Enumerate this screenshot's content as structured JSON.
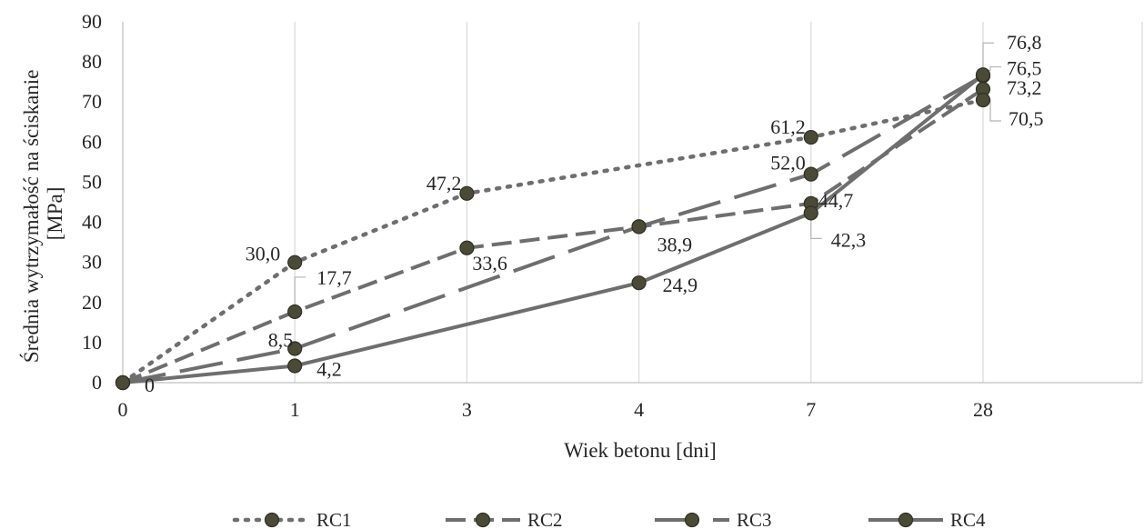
{
  "chart_data": {
    "type": "line",
    "title": "",
    "xlabel": "Wiek betonu [dni]",
    "ylabel_lines": [
      "Średnia wytrzymałość na ściskanie",
      "[MPa]"
    ],
    "categories": [
      "0",
      "1",
      "3",
      "4",
      "7",
      "28"
    ],
    "ylim": [
      0,
      90
    ],
    "yticks": [
      "0",
      "10",
      "20",
      "30",
      "40",
      "50",
      "60",
      "70",
      "80",
      "90"
    ],
    "grid": "vertical",
    "legend_position": "bottom",
    "series": [
      {
        "name": "RC1",
        "style": "dotted",
        "values": [
          0,
          30.0,
          47.2,
          null,
          61.2,
          70.5
        ],
        "labels": [
          "",
          "30,0",
          "47,2",
          "",
          "61,2",
          "70,5"
        ]
      },
      {
        "name": "RC2",
        "style": "dashed",
        "values": [
          0,
          17.7,
          33.6,
          38.9,
          44.7,
          73.2
        ],
        "labels": [
          "",
          "17,7",
          "33,6",
          "38,9",
          "44,7",
          "73,2"
        ]
      },
      {
        "name": "RC3",
        "style": "longdash",
        "values": [
          0,
          8.5,
          null,
          38.9,
          52.0,
          76.5
        ],
        "labels": [
          "",
          "8,5",
          "",
          "",
          "52,0",
          "76,5"
        ]
      },
      {
        "name": "RC4",
        "style": "solid",
        "values": [
          0,
          4.2,
          null,
          24.9,
          42.3,
          76.8
        ],
        "labels": [
          "0",
          "4,2",
          "",
          "24,9",
          "42,3",
          "76,8"
        ]
      }
    ],
    "colors": {
      "line": "#6e6e6e",
      "marker_fill": "#4a4a36",
      "marker_stroke": "#2f2f24",
      "grid": "#d9d9d9",
      "axis": "#bfbfbf"
    }
  }
}
